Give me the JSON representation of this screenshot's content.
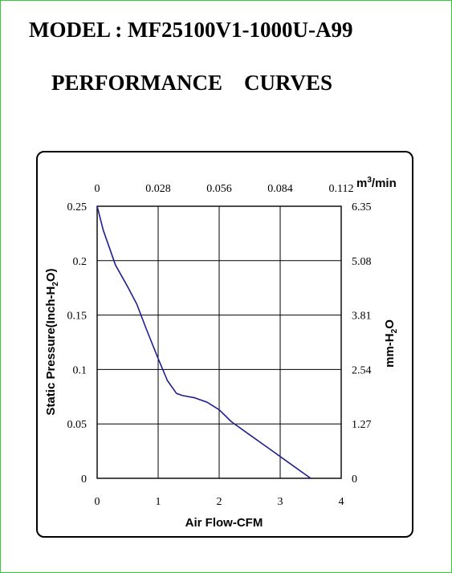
{
  "header": {
    "model_line": "MODEL : MF25100V1-1000U-A99",
    "subtitle": "PERFORMANCE    CURVES"
  },
  "chart_data": {
    "type": "line",
    "xlabel": "Air Flow-CFM",
    "ylabel": "Static Pressure(Inch-H2O)",
    "ylabel_parts": [
      "Static Pressure(Inch-H",
      "2",
      "O)"
    ],
    "x2label": "m3/min",
    "x2label_parts": [
      "m",
      "3",
      "/min"
    ],
    "y2label": "mm-H2O",
    "y2label_parts": [
      "mm-H",
      "2",
      "O"
    ],
    "xlim": [
      0,
      4
    ],
    "ylim": [
      0,
      0.25
    ],
    "x_ticks": [
      "0",
      "1",
      "2",
      "3",
      "4"
    ],
    "y_ticks": [
      "0",
      "0.05",
      "0.1",
      "0.15",
      "0.2",
      "0.25"
    ],
    "x2_ticks": [
      "0",
      "0.028",
      "0.056",
      "0.084",
      "0.112"
    ],
    "y2_ticks": [
      "0",
      "1.27",
      "2.54",
      "3.81",
      "5.08",
      "6.35"
    ],
    "grid": true,
    "line_color": "#1f1f8f",
    "series": [
      {
        "x": [
          0,
          0.1,
          0.3,
          0.5,
          0.65,
          0.8,
          1.0,
          1.15,
          1.3,
          1.4,
          1.6,
          1.8,
          2.0,
          2.2,
          2.5,
          2.8,
          3.1,
          3.4,
          3.5
        ],
        "y": [
          0.25,
          0.228,
          0.196,
          0.176,
          0.16,
          0.138,
          0.11,
          0.09,
          0.078,
          0.076,
          0.074,
          0.07,
          0.063,
          0.052,
          0.04,
          0.028,
          0.016,
          0.004,
          0
        ]
      }
    ]
  }
}
